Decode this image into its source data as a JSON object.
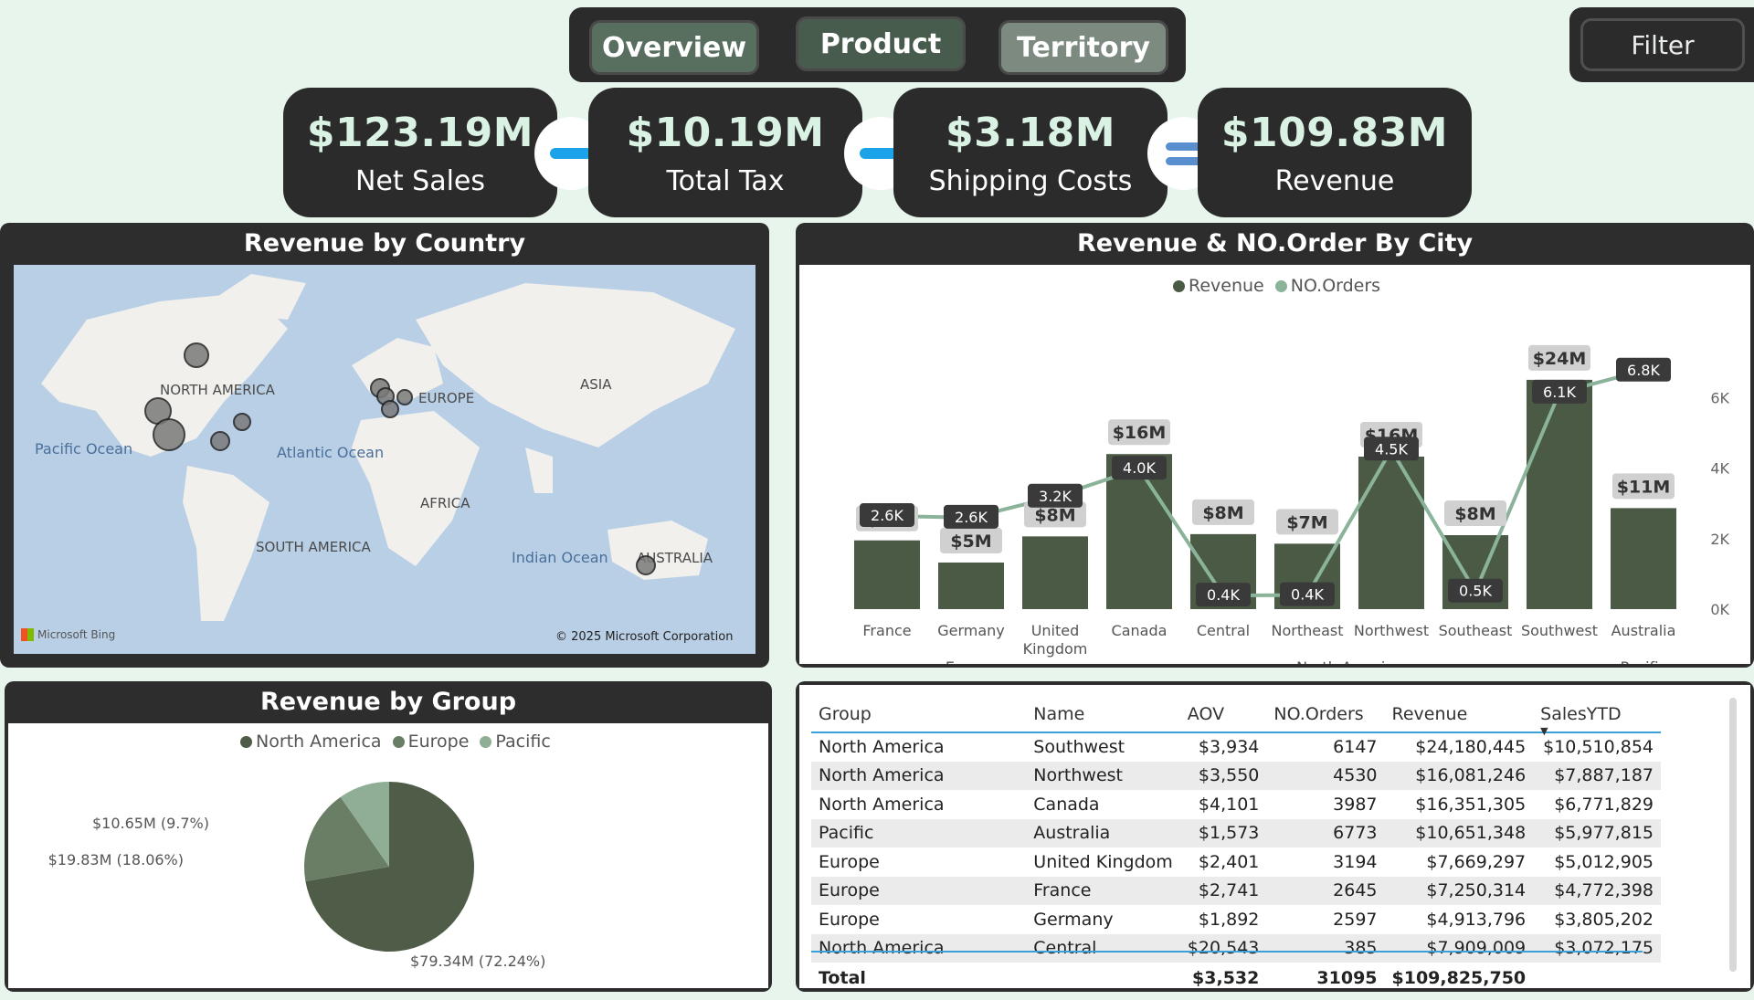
{
  "nav": {
    "tabs": [
      "Overview",
      "Product",
      "Territory"
    ],
    "filter_label": "Filter"
  },
  "kpis": [
    {
      "value": "$123.19M",
      "label": "Net Sales"
    },
    {
      "value": "$10.19M",
      "label": "Total Tax"
    },
    {
      "value": "$3.18M",
      "label": "Shipping Costs"
    },
    {
      "value": "$109.83M",
      "label": "Revenue"
    }
  ],
  "map_card": {
    "title": "Revenue by Country",
    "continents": [
      "NORTH AMERICA",
      "EUROPE",
      "ASIA",
      "AFRICA",
      "SOUTH AMERICA",
      "AUSTRALIA"
    ],
    "oceans": [
      "Pacific Ocean",
      "Atlantic Ocean",
      "Indian Ocean"
    ],
    "attribution_left": "Microsoft Bing",
    "attribution_right": "© 2025 Microsoft Corporation"
  },
  "combo_card": {
    "title": "Revenue & NO.Order By City",
    "legend": [
      "Revenue",
      "NO.Orders"
    ]
  },
  "pie_card": {
    "title": "Revenue by Group",
    "legend": [
      "North America",
      "Europe",
      "Pacific"
    ]
  },
  "table": {
    "columns": [
      "Group",
      "Name",
      "AOV",
      "NO.Orders",
      "Revenue",
      "SalesYTD"
    ],
    "rows": [
      [
        "North America",
        "Southwest",
        "$3,934",
        "6147",
        "$24,180,445",
        "$10,510,854"
      ],
      [
        "North America",
        "Northwest",
        "$3,550",
        "4530",
        "$16,081,246",
        "$7,887,187"
      ],
      [
        "North America",
        "Canada",
        "$4,101",
        "3987",
        "$16,351,305",
        "$6,771,829"
      ],
      [
        "Pacific",
        "Australia",
        "$1,573",
        "6773",
        "$10,651,348",
        "$5,977,815"
      ],
      [
        "Europe",
        "United Kingdom",
        "$2,401",
        "3194",
        "$7,669,297",
        "$5,012,905"
      ],
      [
        "Europe",
        "France",
        "$2,741",
        "2645",
        "$7,250,314",
        "$4,772,398"
      ],
      [
        "Europe",
        "Germany",
        "$1,892",
        "2597",
        "$4,913,796",
        "$3,805,202"
      ],
      [
        "North America",
        "Central",
        "$20,543",
        "385",
        "$7,909,009",
        "$3,072,175"
      ]
    ],
    "total": [
      "Total",
      "",
      "$3,532",
      "31095",
      "$109,825,750",
      ""
    ]
  },
  "chart_data": [
    {
      "type": "bar",
      "title": "Revenue & NO.Order By City",
      "categories": [
        "France",
        "Germany",
        "United Kingdom",
        "Canada",
        "Central",
        "Northeast",
        "Northwest",
        "Southeast",
        "Southwest",
        "Australia"
      ],
      "groups": [
        {
          "name": "Europe",
          "categories": [
            "France",
            "Germany",
            "United Kingdom"
          ]
        },
        {
          "name": "North America",
          "categories": [
            "Canada",
            "Central",
            "Northeast",
            "Northwest",
            "Southeast",
            "Southwest"
          ]
        },
        {
          "name": "Pacific",
          "categories": [
            "Australia"
          ]
        }
      ],
      "series": [
        {
          "name": "Revenue",
          "type": "bar",
          "values": [
            7250314,
            4913796,
            7669297,
            16351305,
            7909009,
            6900000,
            16081246,
            7800000,
            24180445,
            10651348
          ],
          "labels": [
            "$7M",
            "$5M",
            "$8M",
            "$16M",
            "$8M",
            "$7M",
            "$16M",
            "$8M",
            "$24M",
            "$11M"
          ]
        },
        {
          "name": "NO.Orders",
          "type": "line",
          "values": [
            2645,
            2597,
            3194,
            3987,
            385,
            400,
            4530,
            500,
            6147,
            6773
          ],
          "labels": [
            "2.6K",
            "2.6K",
            "3.2K",
            "4.0K",
            "0.4K",
            "0.4K",
            "4.5K",
            "0.5K",
            "6.1K",
            "6.8K"
          ]
        }
      ],
      "y2_ticks": [
        "0K",
        "2K",
        "4K",
        "6K"
      ],
      "y2lim": [
        0,
        7000
      ],
      "ylim": [
        0,
        26000000
      ],
      "colors": {
        "Revenue": "#4a5a45",
        "NO.Orders": "#8ab39a"
      }
    },
    {
      "type": "pie",
      "title": "Revenue by Group",
      "categories": [
        "North America",
        "Europe",
        "Pacific"
      ],
      "values": [
        79.34,
        19.83,
        10.65
      ],
      "labels": [
        "$79.34M (72.24%)",
        "$19.83M (18.06%)",
        "$10.65M (9.7%)"
      ],
      "colors": [
        "#4e5c48",
        "#6a7e66",
        "#8fae95"
      ]
    }
  ]
}
